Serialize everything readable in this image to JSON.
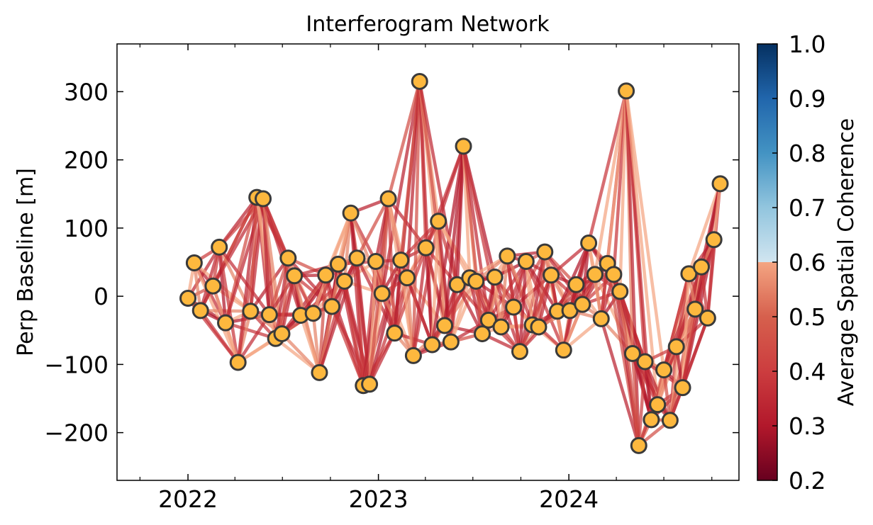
{
  "chart_data": {
    "type": "scatter",
    "title": "Interferogram Network",
    "xlabel": "",
    "ylabel": "Perp Baseline [m]",
    "xlim": [
      "2021-08-18",
      "2024-11-22"
    ],
    "ylim": [
      -270,
      370
    ],
    "x_ticks": [
      "2022",
      "2023",
      "2024"
    ],
    "x_tick_dates": [
      "2022-01-01",
      "2023-01-01",
      "2024-01-01"
    ],
    "y_ticks": [
      300,
      200,
      100,
      0,
      -100,
      -200
    ],
    "y_tick_labels": [
      "300",
      "200",
      "100",
      "0",
      "−100",
      "−200"
    ],
    "grid": false,
    "colorbar": {
      "label": "Average Spatial Coherence",
      "min": 0.2,
      "max": 1.0,
      "ticks": [
        1.0,
        0.9,
        0.8,
        0.7,
        0.6,
        0.5,
        0.4,
        0.3,
        0.2
      ],
      "tick_labels": [
        "1.0",
        "0.9",
        "0.8",
        "0.7",
        "0.6",
        "0.5",
        "0.4",
        "0.3",
        "0.2"
      ],
      "colormap": "RdBu"
    },
    "edge_color": "#b2182b",
    "marker_color": "#fdb83e",
    "marker_edge": "#3a3a3a",
    "acquisitions": [
      {
        "date": "2022-01-01",
        "bperp": -3
      },
      {
        "date": "2022-01-13",
        "bperp": 49
      },
      {
        "date": "2022-01-25",
        "bperp": -21
      },
      {
        "date": "2022-02-18",
        "bperp": 15
      },
      {
        "date": "2022-03-02",
        "bperp": 72
      },
      {
        "date": "2022-03-14",
        "bperp": -39
      },
      {
        "date": "2022-04-07",
        "bperp": -97
      },
      {
        "date": "2022-05-01",
        "bperp": -22
      },
      {
        "date": "2022-05-13",
        "bperp": 145
      },
      {
        "date": "2022-05-25",
        "bperp": 143
      },
      {
        "date": "2022-06-06",
        "bperp": -27
      },
      {
        "date": "2022-06-18",
        "bperp": -62
      },
      {
        "date": "2022-06-30",
        "bperp": -55
      },
      {
        "date": "2022-07-12",
        "bperp": 56
      },
      {
        "date": "2022-07-24",
        "bperp": 30
      },
      {
        "date": "2022-08-05",
        "bperp": -28
      },
      {
        "date": "2022-08-29",
        "bperp": -25
      },
      {
        "date": "2022-09-10",
        "bperp": -112
      },
      {
        "date": "2022-09-22",
        "bperp": 31
      },
      {
        "date": "2022-10-04",
        "bperp": -15
      },
      {
        "date": "2022-10-16",
        "bperp": 47
      },
      {
        "date": "2022-10-28",
        "bperp": 22
      },
      {
        "date": "2022-11-09",
        "bperp": 122
      },
      {
        "date": "2022-11-21",
        "bperp": 56
      },
      {
        "date": "2022-12-03",
        "bperp": -131
      },
      {
        "date": "2022-12-15",
        "bperp": -129
      },
      {
        "date": "2022-12-27",
        "bperp": 51
      },
      {
        "date": "2023-01-08",
        "bperp": 4
      },
      {
        "date": "2023-01-20",
        "bperp": 143
      },
      {
        "date": "2023-02-01",
        "bperp": -54
      },
      {
        "date": "2023-02-13",
        "bperp": 53
      },
      {
        "date": "2023-02-25",
        "bperp": 27
      },
      {
        "date": "2023-03-09",
        "bperp": -87
      },
      {
        "date": "2023-03-21",
        "bperp": 315
      },
      {
        "date": "2023-04-02",
        "bperp": 71
      },
      {
        "date": "2023-04-14",
        "bperp": -71
      },
      {
        "date": "2023-04-26",
        "bperp": 110
      },
      {
        "date": "2023-05-08",
        "bperp": -43
      },
      {
        "date": "2023-05-20",
        "bperp": -67
      },
      {
        "date": "2023-06-01",
        "bperp": 17
      },
      {
        "date": "2023-06-13",
        "bperp": 220
      },
      {
        "date": "2023-06-25",
        "bperp": 27
      },
      {
        "date": "2023-07-07",
        "bperp": 22
      },
      {
        "date": "2023-07-19",
        "bperp": -55
      },
      {
        "date": "2023-07-31",
        "bperp": -35
      },
      {
        "date": "2023-08-12",
        "bperp": 28
      },
      {
        "date": "2023-08-24",
        "bperp": -45
      },
      {
        "date": "2023-09-05",
        "bperp": 59
      },
      {
        "date": "2023-09-17",
        "bperp": -16
      },
      {
        "date": "2023-09-29",
        "bperp": -81
      },
      {
        "date": "2023-10-11",
        "bperp": 51
      },
      {
        "date": "2023-10-23",
        "bperp": -42
      },
      {
        "date": "2023-11-04",
        "bperp": -45
      },
      {
        "date": "2023-11-16",
        "bperp": 65
      },
      {
        "date": "2023-11-28",
        "bperp": 31
      },
      {
        "date": "2023-12-10",
        "bperp": -22
      },
      {
        "date": "2023-12-22",
        "bperp": -79
      },
      {
        "date": "2024-01-03",
        "bperp": -21
      },
      {
        "date": "2024-01-15",
        "bperp": 17
      },
      {
        "date": "2024-01-27",
        "bperp": -12
      },
      {
        "date": "2024-02-08",
        "bperp": 78
      },
      {
        "date": "2024-02-20",
        "bperp": 32
      },
      {
        "date": "2024-03-03",
        "bperp": -33
      },
      {
        "date": "2024-03-15",
        "bperp": 48
      },
      {
        "date": "2024-03-27",
        "bperp": 32
      },
      {
        "date": "2024-04-08",
        "bperp": 7
      },
      {
        "date": "2024-04-20",
        "bperp": 301
      },
      {
        "date": "2024-05-02",
        "bperp": -84
      },
      {
        "date": "2024-05-14",
        "bperp": -219
      },
      {
        "date": "2024-05-26",
        "bperp": -96
      },
      {
        "date": "2024-06-07",
        "bperp": -181
      },
      {
        "date": "2024-06-19",
        "bperp": -159
      },
      {
        "date": "2024-07-01",
        "bperp": -108
      },
      {
        "date": "2024-07-13",
        "bperp": -182
      },
      {
        "date": "2024-07-25",
        "bperp": -74
      },
      {
        "date": "2024-08-06",
        "bperp": -134
      },
      {
        "date": "2024-08-18",
        "bperp": 33
      },
      {
        "date": "2024-08-30",
        "bperp": -19
      },
      {
        "date": "2024-09-11",
        "bperp": 43
      },
      {
        "date": "2024-09-23",
        "bperp": -32
      },
      {
        "date": "2024-10-05",
        "bperp": 83
      },
      {
        "date": "2024-10-17",
        "bperp": 165
      }
    ],
    "connections_per_acquisition": 6,
    "connection_coherence": [
      0.62,
      0.6,
      0.45,
      0.35,
      0.3,
      0.38,
      0.55,
      0.33,
      0.4,
      0.36
    ]
  }
}
